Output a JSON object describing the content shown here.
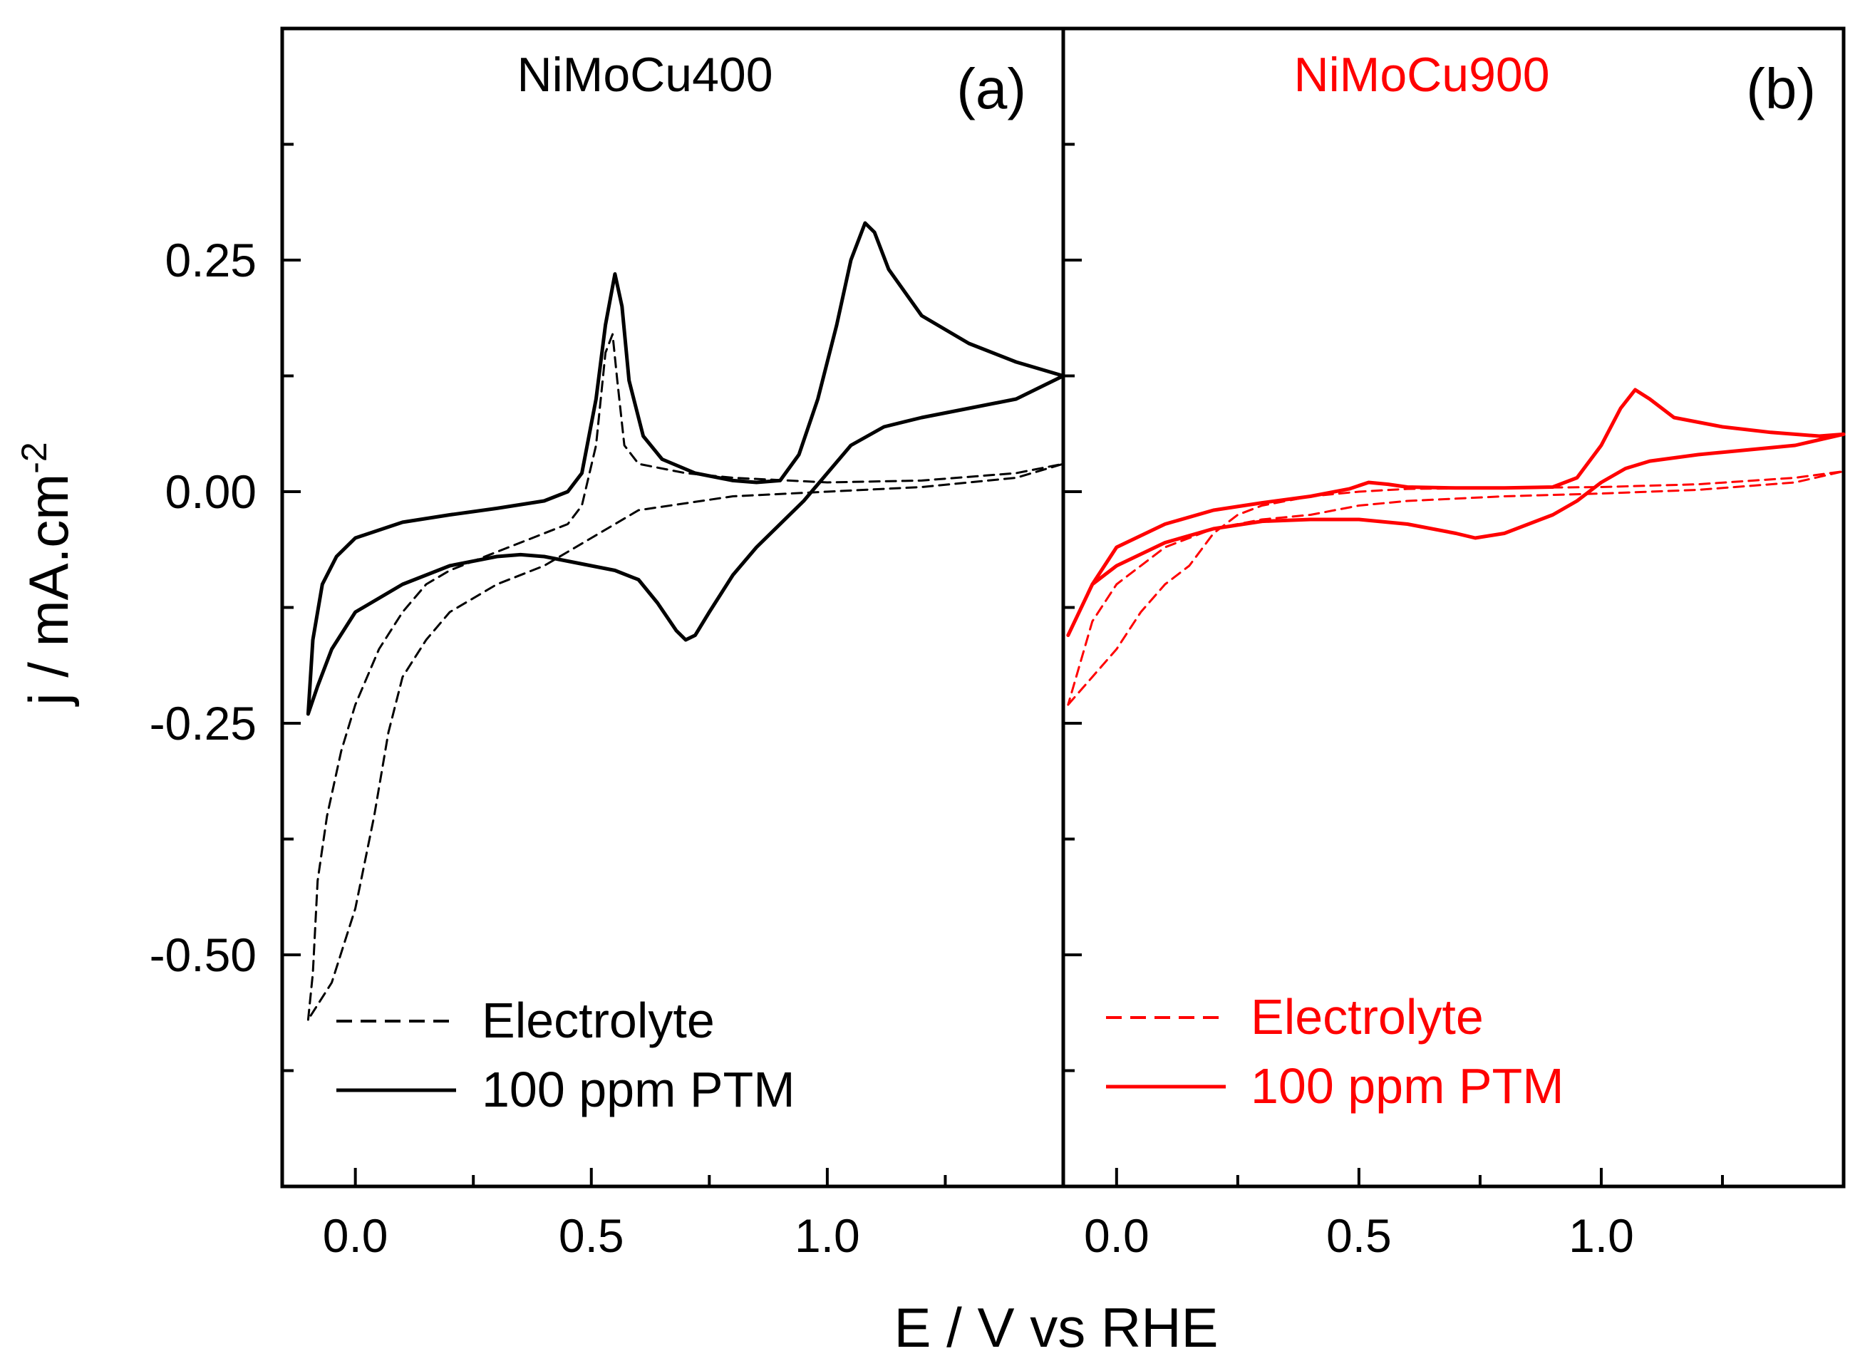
{
  "chart_data": {
    "type": "line",
    "y_axis": {
      "label": "j / mA.cm",
      "label_superscript": "-2",
      "range": [
        -0.75,
        0.5
      ],
      "major_ticks": [
        0.25,
        0.0,
        -0.25,
        -0.5
      ],
      "tick_labels": [
        "0.25",
        "0.00",
        "-0.25",
        "-0.50"
      ],
      "minor_ticks": [
        0.375,
        0.125,
        -0.125,
        -0.375,
        -0.625
      ]
    },
    "x_axis": {
      "label": "E / V vs RHE",
      "major_ticks": [
        0.0,
        0.5,
        1.0
      ],
      "tick_labels": [
        "0.0",
        "0.5",
        "1.0"
      ],
      "minor_ticks": [
        0.25,
        0.75,
        1.25
      ]
    },
    "panels": [
      {
        "title": "NiMoCu400",
        "letter": "(a)",
        "color": "#000000",
        "xlim": [
          -0.155,
          1.5
        ],
        "legend_position": "bottom-left",
        "series": [
          {
            "name": "Electrolyte",
            "style": "dashed",
            "points": [
              [
                -0.1,
                -0.57
              ],
              [
                -0.09,
                -0.52
              ],
              [
                -0.08,
                -0.42
              ],
              [
                -0.06,
                -0.35
              ],
              [
                -0.03,
                -0.28
              ],
              [
                0.0,
                -0.23
              ],
              [
                0.05,
                -0.17
              ],
              [
                0.1,
                -0.13
              ],
              [
                0.15,
                -0.1
              ],
              [
                0.2,
                -0.085
              ],
              [
                0.3,
                -0.065
              ],
              [
                0.4,
                -0.045
              ],
              [
                0.45,
                -0.035
              ],
              [
                0.48,
                -0.015
              ],
              [
                0.51,
                0.05
              ],
              [
                0.53,
                0.15
              ],
              [
                0.545,
                0.17
              ],
              [
                0.555,
                0.12
              ],
              [
                0.57,
                0.05
              ],
              [
                0.6,
                0.03
              ],
              [
                0.7,
                0.02
              ],
              [
                0.8,
                0.015
              ],
              [
                1.0,
                0.01
              ],
              [
                1.2,
                0.012
              ],
              [
                1.4,
                0.02
              ],
              [
                1.5,
                0.03
              ],
              [
                1.4,
                0.015
              ],
              [
                1.2,
                0.005
              ],
              [
                1.0,
                0.0
              ],
              [
                0.8,
                -0.005
              ],
              [
                0.6,
                -0.02
              ],
              [
                0.5,
                -0.05
              ],
              [
                0.4,
                -0.08
              ],
              [
                0.3,
                -0.1
              ],
              [
                0.2,
                -0.13
              ],
              [
                0.15,
                -0.16
              ],
              [
                0.1,
                -0.2
              ],
              [
                0.07,
                -0.26
              ],
              [
                0.04,
                -0.35
              ],
              [
                0.0,
                -0.45
              ],
              [
                -0.05,
                -0.53
              ],
              [
                -0.1,
                -0.57
              ]
            ]
          },
          {
            "name": "100 ppm PTM",
            "style": "solid",
            "points": [
              [
                -0.1,
                -0.24
              ],
              [
                -0.09,
                -0.16
              ],
              [
                -0.07,
                -0.1
              ],
              [
                -0.04,
                -0.07
              ],
              [
                0.0,
                -0.05
              ],
              [
                0.1,
                -0.033
              ],
              [
                0.2,
                -0.025
              ],
              [
                0.3,
                -0.018
              ],
              [
                0.4,
                -0.01
              ],
              [
                0.45,
                0.0
              ],
              [
                0.48,
                0.02
              ],
              [
                0.51,
                0.1
              ],
              [
                0.53,
                0.18
              ],
              [
                0.55,
                0.235
              ],
              [
                0.565,
                0.2
              ],
              [
                0.58,
                0.12
              ],
              [
                0.61,
                0.06
              ],
              [
                0.65,
                0.035
              ],
              [
                0.72,
                0.02
              ],
              [
                0.8,
                0.012
              ],
              [
                0.85,
                0.01
              ],
              [
                0.9,
                0.012
              ],
              [
                0.94,
                0.04
              ],
              [
                0.98,
                0.1
              ],
              [
                1.02,
                0.18
              ],
              [
                1.05,
                0.25
              ],
              [
                1.08,
                0.29
              ],
              [
                1.1,
                0.28
              ],
              [
                1.13,
                0.24
              ],
              [
                1.2,
                0.19
              ],
              [
                1.3,
                0.16
              ],
              [
                1.4,
                0.14
              ],
              [
                1.5,
                0.125
              ],
              [
                1.4,
                0.1
              ],
              [
                1.3,
                0.09
              ],
              [
                1.2,
                0.08
              ],
              [
                1.12,
                0.07
              ],
              [
                1.05,
                0.05
              ],
              [
                1.0,
                0.02
              ],
              [
                0.95,
                -0.01
              ],
              [
                0.85,
                -0.06
              ],
              [
                0.8,
                -0.09
              ],
              [
                0.75,
                -0.13
              ],
              [
                0.72,
                -0.155
              ],
              [
                0.7,
                -0.16
              ],
              [
                0.68,
                -0.15
              ],
              [
                0.64,
                -0.12
              ],
              [
                0.6,
                -0.095
              ],
              [
                0.55,
                -0.085
              ],
              [
                0.5,
                -0.08
              ],
              [
                0.45,
                -0.075
              ],
              [
                0.4,
                -0.07
              ],
              [
                0.35,
                -0.068
              ],
              [
                0.3,
                -0.07
              ],
              [
                0.2,
                -0.08
              ],
              [
                0.1,
                -0.1
              ],
              [
                0.0,
                -0.13
              ],
              [
                -0.05,
                -0.17
              ],
              [
                -0.08,
                -0.21
              ],
              [
                -0.1,
                -0.24
              ]
            ]
          }
        ]
      },
      {
        "title": "NiMoCu900",
        "letter": "(b)",
        "color": "#ff0000",
        "xlim": [
          -0.11,
          1.5
        ],
        "legend_position": "bottom-left",
        "series": [
          {
            "name": "Electrolyte",
            "style": "dashed",
            "points": [
              [
                -0.1,
                -0.23
              ],
              [
                -0.05,
                -0.2
              ],
              [
                0.0,
                -0.17
              ],
              [
                0.05,
                -0.13
              ],
              [
                0.1,
                -0.1
              ],
              [
                0.15,
                -0.08
              ],
              [
                0.2,
                -0.045
              ],
              [
                0.25,
                -0.025
              ],
              [
                0.3,
                -0.015
              ],
              [
                0.4,
                -0.005
              ],
              [
                0.5,
                0.0
              ],
              [
                0.6,
                0.003
              ],
              [
                0.8,
                0.004
              ],
              [
                1.0,
                0.005
              ],
              [
                1.2,
                0.008
              ],
              [
                1.4,
                0.015
              ],
              [
                1.5,
                0.022
              ],
              [
                1.4,
                0.01
              ],
              [
                1.2,
                0.002
              ],
              [
                1.0,
                -0.002
              ],
              [
                0.8,
                -0.005
              ],
              [
                0.6,
                -0.01
              ],
              [
                0.5,
                -0.015
              ],
              [
                0.4,
                -0.025
              ],
              [
                0.3,
                -0.03
              ],
              [
                0.2,
                -0.04
              ],
              [
                0.1,
                -0.06
              ],
              [
                0.0,
                -0.1
              ],
              [
                -0.05,
                -0.14
              ],
              [
                -0.1,
                -0.23
              ]
            ]
          },
          {
            "name": "100 ppm PTM",
            "style": "solid",
            "points": [
              [
                -0.1,
                -0.155
              ],
              [
                -0.05,
                -0.1
              ],
              [
                0.0,
                -0.06
              ],
              [
                0.1,
                -0.035
              ],
              [
                0.2,
                -0.02
              ],
              [
                0.3,
                -0.012
              ],
              [
                0.4,
                -0.005
              ],
              [
                0.48,
                0.003
              ],
              [
                0.52,
                0.01
              ],
              [
                0.56,
                0.008
              ],
              [
                0.6,
                0.005
              ],
              [
                0.7,
                0.004
              ],
              [
                0.8,
                0.004
              ],
              [
                0.9,
                0.005
              ],
              [
                0.95,
                0.015
              ],
              [
                1.0,
                0.05
              ],
              [
                1.04,
                0.09
              ],
              [
                1.07,
                0.11
              ],
              [
                1.1,
                0.1
              ],
              [
                1.15,
                0.08
              ],
              [
                1.25,
                0.07
              ],
              [
                1.35,
                0.064
              ],
              [
                1.45,
                0.06
              ],
              [
                1.5,
                0.062
              ],
              [
                1.4,
                0.05
              ],
              [
                1.3,
                0.045
              ],
              [
                1.2,
                0.04
              ],
              [
                1.1,
                0.033
              ],
              [
                1.05,
                0.025
              ],
              [
                1.0,
                0.01
              ],
              [
                0.95,
                -0.01
              ],
              [
                0.9,
                -0.025
              ],
              [
                0.8,
                -0.045
              ],
              [
                0.74,
                -0.05
              ],
              [
                0.7,
                -0.045
              ],
              [
                0.6,
                -0.035
              ],
              [
                0.5,
                -0.03
              ],
              [
                0.4,
                -0.03
              ],
              [
                0.3,
                -0.032
              ],
              [
                0.2,
                -0.04
              ],
              [
                0.1,
                -0.055
              ],
              [
                0.0,
                -0.08
              ],
              [
                -0.05,
                -0.1
              ],
              [
                -0.1,
                -0.155
              ]
            ]
          }
        ]
      }
    ]
  }
}
